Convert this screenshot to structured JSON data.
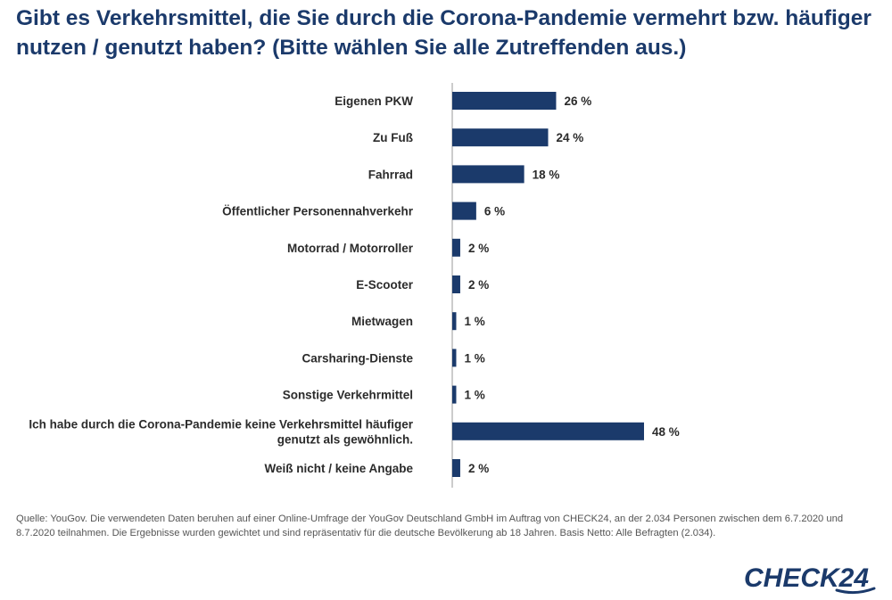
{
  "title": "Gibt es Verkehrsmittel, die Sie durch die Corona-Pandemie vermehrt bzw. häufiger nutzen / genutzt haben? (Bitte wählen Sie alle Zutreffenden aus.)",
  "source": "Quelle: YouGov. Die verwendeten Daten beruhen auf einer Online-Umfrage der YouGov Deutschland GmbH im Auftrag von CHECK24, an der 2.034 Personen zwischen dem 6.7.2020 und 8.7.2020 teilnahmen. Die Ergebnisse wurden gewichtet und sind repräsentativ für die deutsche Bevölkerung ab 18 Jahren. Basis Netto: Alle Befragten (2.034).",
  "logo": {
    "text": "CHECK24"
  },
  "colors": {
    "bar": "#1b3a6b",
    "title": "#1b3a6b",
    "axis": "#999999"
  },
  "chart_data": {
    "type": "bar",
    "orientation": "horizontal",
    "categories": [
      [
        "Eigenen PKW"
      ],
      [
        "Zu Fuß"
      ],
      [
        "Fahrrad"
      ],
      [
        "Öffentlicher Personennahverkehr"
      ],
      [
        "Motorrad / Motorroller"
      ],
      [
        "E-Scooter"
      ],
      [
        "Mietwagen"
      ],
      [
        "Carsharing-Dienste"
      ],
      [
        "Sonstige Verkehrmittel"
      ],
      [
        "Ich habe durch die Corona-Pandemie keine Verkehrsmittel häufiger",
        "genutzt als gewöhnlich."
      ],
      [
        "Weiß nicht / keine Angabe"
      ]
    ],
    "values": [
      26,
      24,
      18,
      6,
      2,
      2,
      1,
      1,
      1,
      48,
      2
    ],
    "value_labels": [
      "26 %",
      "24 %",
      "18 %",
      "6 %",
      "2 %",
      "2 %",
      "1 %",
      "1 %",
      "1 %",
      "48 %",
      "2 %"
    ],
    "unit": "%",
    "xlim": [
      0,
      48
    ],
    "grid": false
  }
}
